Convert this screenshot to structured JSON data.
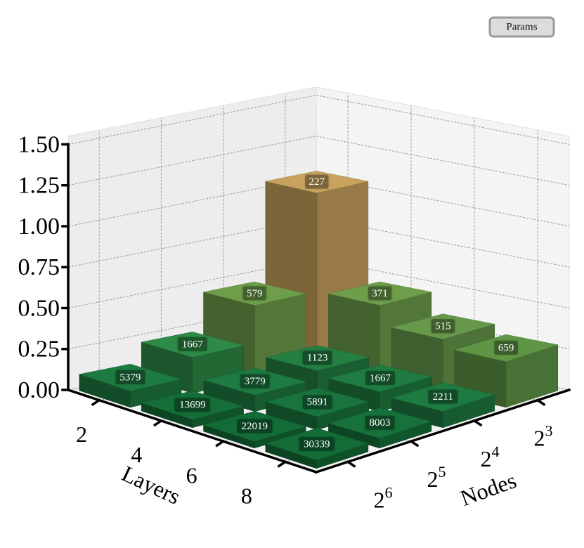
{
  "chart_data": {
    "type": "bar3d",
    "x_label": "Layers",
    "y_label": "Nodes",
    "legend": "Params",
    "layers": [
      2,
      4,
      6,
      8
    ],
    "nodes": [
      {
        "base": "2",
        "exponent": "3"
      },
      {
        "base": "2",
        "exponent": "4"
      },
      {
        "base": "2",
        "exponent": "5"
      },
      {
        "base": "2",
        "exponent": "6"
      }
    ],
    "zlim": [
      0,
      1.55
    ],
    "zticks": [
      {
        "value": 0,
        "label": "0.00"
      },
      {
        "value": 0.25,
        "label": "0.25"
      },
      {
        "value": 0.5,
        "label": "0.50"
      },
      {
        "value": 0.75,
        "label": "0.75"
      },
      {
        "value": 1.0,
        "label": "1.00"
      },
      {
        "value": 1.25,
        "label": "1.25"
      },
      {
        "value": 1.5,
        "label": "1.50"
      }
    ],
    "heights": [
      [
        1.05,
        0.45,
        0.22,
        0.1
      ],
      [
        0.45,
        0.15,
        0.1,
        0.05
      ],
      [
        0.33,
        0.12,
        0.08,
        0.04
      ],
      [
        0.28,
        0.1,
        0.06,
        0.05
      ]
    ],
    "params": [
      [
        227,
        579,
        1667,
        5379
      ],
      [
        371,
        1123,
        3779,
        13699
      ],
      [
        515,
        1667,
        5891,
        22019
      ],
      [
        659,
        2211,
        8003,
        30339
      ]
    ],
    "colors": [
      [
        "#c9a35e",
        "#6e9e4a",
        "#2d8a47",
        "#1d7a40"
      ],
      [
        "#6e9e4a",
        "#237f42",
        "#1d7a40",
        "#156f38"
      ],
      [
        "#66994a",
        "#1f7c40",
        "#18743c",
        "#136c36"
      ],
      [
        "#5f9646",
        "#1d7a40",
        "#16713a",
        "#136c36"
      ]
    ],
    "grid": true
  }
}
